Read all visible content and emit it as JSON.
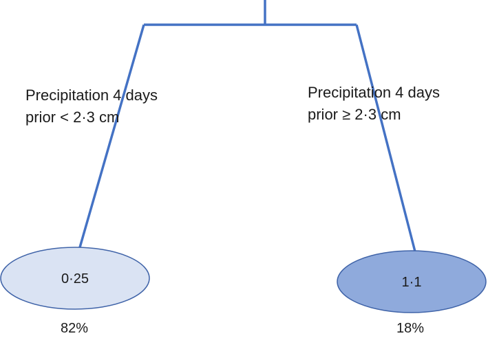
{
  "colors": {
    "branch": "#4472C4",
    "left_node_fill": "#DAE3F3",
    "right_node_fill": "#8FAADC",
    "node_outline": "#3F63A8",
    "text": "#1a1a1a"
  },
  "tree": {
    "left": {
      "condition_line1": "Precipitation 4 days",
      "condition_line2": "prior < 2·3 cm",
      "value": "0·25",
      "percent": "82%"
    },
    "right": {
      "condition_line1": "Precipitation 4 days",
      "condition_line2": "prior ≥ 2·3 cm",
      "value": "1·1",
      "percent": "18%"
    }
  }
}
